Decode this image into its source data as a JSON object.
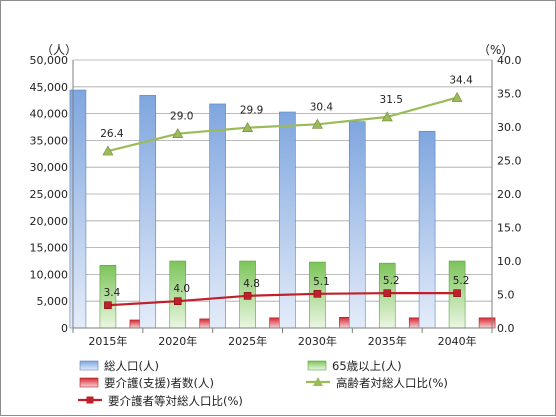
{
  "chart_data": {
    "type": "bar",
    "categories": [
      "2015年",
      "2020年",
      "2025年",
      "2030年",
      "2035年",
      "2040年"
    ],
    "y_left": {
      "unit_label": "（人）",
      "min": 0,
      "max": 50000,
      "step": 5000,
      "ticks": [
        "0",
        "5,000",
        "10,000",
        "15,000",
        "20,000",
        "25,000",
        "30,000",
        "35,000",
        "40,000",
        "45,000",
        "50,000"
      ]
    },
    "y_right": {
      "unit_label": "（%）",
      "min": 0,
      "max": 40,
      "step": 5,
      "ticks": [
        "0.0",
        "5.0",
        "10.0",
        "15.0",
        "20.0",
        "25.0",
        "30.0",
        "35.0",
        "40.0"
      ]
    },
    "grid": true,
    "series": [
      {
        "name": "総人口(人)",
        "kind": "bar",
        "axis": "left",
        "color": "#8fb3e6",
        "values": [
          44400,
          43400,
          41800,
          40300,
          38500,
          36700
        ]
      },
      {
        "name": "65歳以上(人)",
        "kind": "bar",
        "axis": "left",
        "color": "#8ed06e",
        "values": [
          11700,
          12500,
          12500,
          12300,
          12100,
          12500
        ]
      },
      {
        "name": "要介護(支援)者数(人)",
        "kind": "bar",
        "axis": "left",
        "color": "#d9333d",
        "values": [
          1500,
          1700,
          1900,
          2000,
          1900,
          1900
        ]
      },
      {
        "name": "高齢者対総人口比(%)",
        "kind": "line",
        "axis": "right",
        "color": "#9bbb59",
        "marker": "triangle",
        "values": [
          26.4,
          29.0,
          29.9,
          30.4,
          31.5,
          34.4
        ],
        "labels": [
          "26.4",
          "29.0",
          "29.9",
          "30.4",
          "31.5",
          "34.4"
        ]
      },
      {
        "name": "要介護者等対総人口比(%)",
        "kind": "line",
        "axis": "right",
        "color": "#c0202a",
        "marker": "square",
        "values": [
          3.4,
          4.0,
          4.8,
          5.1,
          5.2,
          5.2
        ],
        "labels": [
          "3.4",
          "4.0",
          "4.8",
          "5.1",
          "5.2",
          "5.2"
        ]
      }
    ],
    "legend_position": "bottom"
  }
}
